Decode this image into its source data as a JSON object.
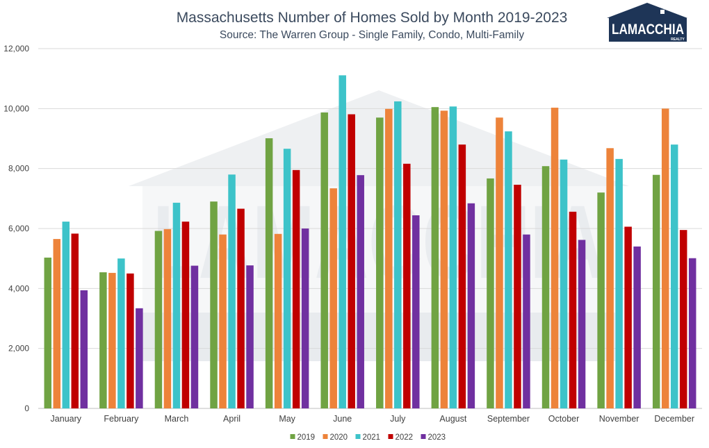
{
  "header": {
    "title": "Massachusetts Number of Homes Sold by Month 2019-2023",
    "subtitle": "Source: The Warren Group - Single Family, Condo, Multi-Family"
  },
  "logo": {
    "name": "LAMACCHIA",
    "sub": "REALTY",
    "icon": "house-logo-icon",
    "colors": {
      "navy": "#1e3557",
      "white": "#ffffff"
    }
  },
  "watermark": {
    "icon": "house-watermark-icon",
    "text": "LAMACCHIA",
    "color": "#eef0f2"
  },
  "chart_data": {
    "type": "bar",
    "title": "Massachusetts Number of Homes Sold by Month 2019-2023",
    "subtitle": "Source: The Warren Group - Single Family, Condo, Multi-Family",
    "xlabel": "",
    "ylabel": "",
    "ylim": [
      0,
      12000
    ],
    "yticks": [
      0,
      2000,
      4000,
      6000,
      8000,
      10000,
      12000
    ],
    "ytick_labels": [
      "0",
      "2,000",
      "4,000",
      "6,000",
      "8,000",
      "10,000",
      "12,000"
    ],
    "grid": true,
    "legend_position": "bottom",
    "categories": [
      "January",
      "February",
      "March",
      "April",
      "May",
      "June",
      "July",
      "August",
      "September",
      "October",
      "November",
      "December"
    ],
    "series": [
      {
        "name": "2019",
        "color": "#70a343",
        "values": [
          5030,
          4540,
          5920,
          6900,
          9010,
          9870,
          9700,
          10050,
          7670,
          8080,
          7200,
          7790
        ]
      },
      {
        "name": "2020",
        "color": "#ed833a",
        "values": [
          5650,
          4520,
          5980,
          5800,
          5820,
          7340,
          9990,
          9930,
          9700,
          10030,
          8680,
          10000
        ]
      },
      {
        "name": "2021",
        "color": "#3dc3c9",
        "values": [
          6230,
          5000,
          6860,
          7800,
          8660,
          11110,
          10240,
          10070,
          9240,
          8300,
          8320,
          8800
        ]
      },
      {
        "name": "2022",
        "color": "#c00000",
        "values": [
          5830,
          4500,
          6230,
          6660,
          7950,
          9810,
          8160,
          8800,
          7460,
          6560,
          6060,
          5950
        ]
      },
      {
        "name": "2023",
        "color": "#7030a0",
        "values": [
          3940,
          3340,
          4760,
          4770,
          6000,
          7780,
          6440,
          6840,
          5800,
          5620,
          5400,
          5010
        ]
      }
    ]
  }
}
